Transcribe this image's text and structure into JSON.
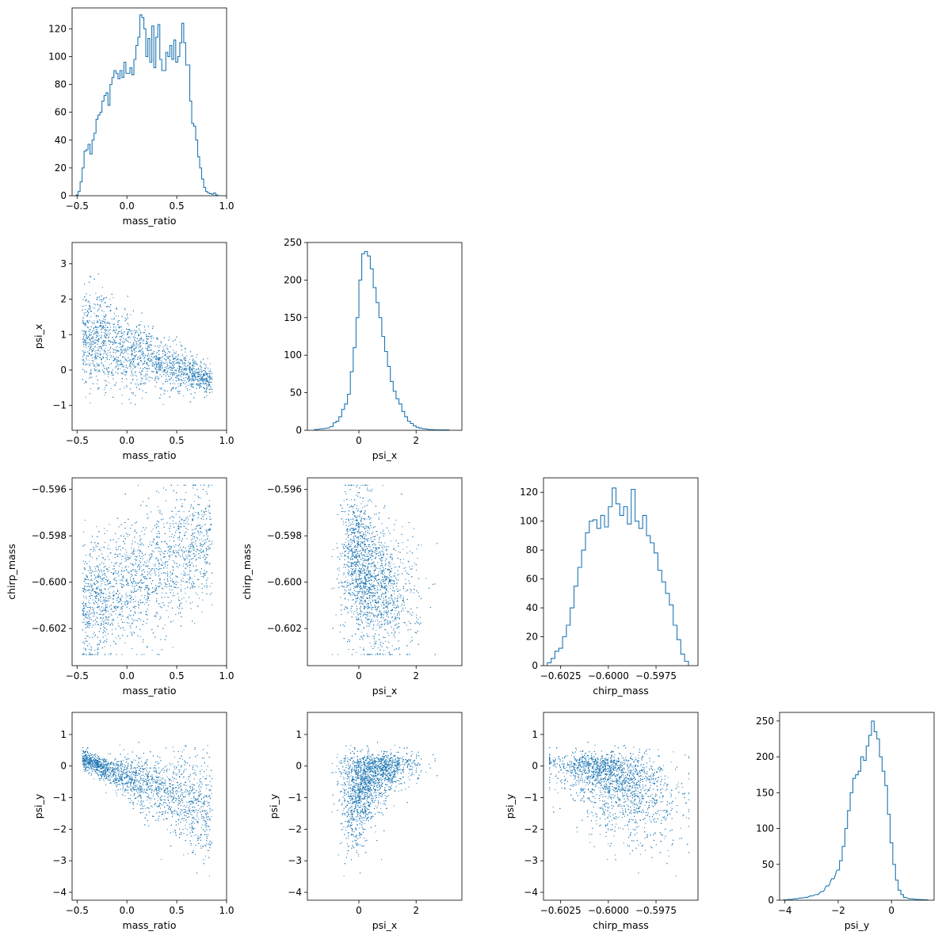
{
  "figure": {
    "variables": [
      "mass_ratio",
      "psi_x",
      "chirp_mass",
      "psi_y"
    ],
    "colors": {
      "line": "#1f77b4",
      "points": "#1f77b4",
      "axes": "#000000"
    }
  },
  "chart_data": [
    {
      "type": "histogram",
      "variable": "mass_ratio",
      "xlabel": "mass_ratio",
      "xlim": [
        -0.55,
        1.0
      ],
      "ylim": [
        0,
        135
      ],
      "xticks": [
        -0.5,
        0.0,
        0.5,
        1.0
      ],
      "xtick_labels": [
        "−0.5",
        "0.0",
        "0.5",
        "1.0"
      ],
      "yticks": [
        0,
        20,
        40,
        60,
        80,
        100,
        120
      ],
      "ytick_labels": [
        "0",
        "20",
        "40",
        "60",
        "80",
        "100",
        "120"
      ],
      "bins": [
        [
          -0.5,
          0.5
        ],
        [
          -0.48,
          3
        ],
        [
          -0.46,
          10
        ],
        [
          -0.44,
          20
        ],
        [
          -0.42,
          32
        ],
        [
          -0.4,
          33
        ],
        [
          -0.38,
          37
        ],
        [
          -0.36,
          30
        ],
        [
          -0.34,
          40
        ],
        [
          -0.32,
          45
        ],
        [
          -0.3,
          55
        ],
        [
          -0.28,
          58
        ],
        [
          -0.26,
          60
        ],
        [
          -0.24,
          68
        ],
        [
          -0.22,
          72
        ],
        [
          -0.2,
          74
        ],
        [
          -0.18,
          65
        ],
        [
          -0.16,
          80
        ],
        [
          -0.14,
          85
        ],
        [
          -0.12,
          90
        ],
        [
          -0.1,
          88
        ],
        [
          -0.08,
          84
        ],
        [
          -0.06,
          90
        ],
        [
          -0.04,
          85
        ],
        [
          -0.02,
          96
        ],
        [
          0.0,
          88
        ],
        [
          0.02,
          88
        ],
        [
          0.04,
          92
        ],
        [
          0.06,
          87
        ],
        [
          0.08,
          98
        ],
        [
          0.1,
          108
        ],
        [
          0.12,
          114
        ],
        [
          0.14,
          130
        ],
        [
          0.16,
          128
        ],
        [
          0.18,
          120
        ],
        [
          0.2,
          100
        ],
        [
          0.22,
          113
        ],
        [
          0.24,
          96
        ],
        [
          0.26,
          122
        ],
        [
          0.28,
          92
        ],
        [
          0.3,
          114
        ],
        [
          0.32,
          123
        ],
        [
          0.34,
          98
        ],
        [
          0.36,
          90
        ],
        [
          0.38,
          90
        ],
        [
          0.4,
          103
        ],
        [
          0.42,
          100
        ],
        [
          0.44,
          108
        ],
        [
          0.46,
          98
        ],
        [
          0.48,
          112
        ],
        [
          0.5,
          96
        ],
        [
          0.52,
          100
        ],
        [
          0.54,
          110
        ],
        [
          0.56,
          124
        ],
        [
          0.58,
          110
        ],
        [
          0.6,
          94
        ],
        [
          0.62,
          94
        ],
        [
          0.64,
          68
        ],
        [
          0.66,
          52
        ],
        [
          0.68,
          50
        ],
        [
          0.7,
          40
        ],
        [
          0.72,
          28
        ],
        [
          0.74,
          20
        ],
        [
          0.76,
          12
        ],
        [
          0.78,
          6
        ],
        [
          0.8,
          3
        ],
        [
          0.82,
          2
        ],
        [
          0.84,
          1.5
        ],
        [
          0.86,
          1
        ],
        [
          0.88,
          2
        ],
        [
          0.9,
          0.5
        ]
      ],
      "bin_width": 0.02
    },
    {
      "type": "histogram",
      "variable": "psi_x",
      "xlabel": "psi_x",
      "xlim": [
        -1.8,
        3.6
      ],
      "ylim": [
        0,
        250
      ],
      "xticks": [
        0,
        2
      ],
      "xtick_labels": [
        "0",
        "2"
      ],
      "yticks": [
        0,
        50,
        100,
        150,
        200,
        250
      ],
      "ytick_labels": [
        "0",
        "50",
        "100",
        "150",
        "200",
        "250"
      ],
      "bins": [
        [
          -1.5,
          1
        ],
        [
          -1.3,
          2
        ],
        [
          -1.1,
          3
        ],
        [
          -0.95,
          5
        ],
        [
          -0.85,
          10
        ],
        [
          -0.75,
          12
        ],
        [
          -0.65,
          18
        ],
        [
          -0.55,
          28
        ],
        [
          -0.45,
          35
        ],
        [
          -0.35,
          48
        ],
        [
          -0.25,
          78
        ],
        [
          -0.15,
          110
        ],
        [
          -0.05,
          150
        ],
        [
          0.05,
          200
        ],
        [
          0.15,
          235
        ],
        [
          0.25,
          238
        ],
        [
          0.35,
          232
        ],
        [
          0.45,
          215
        ],
        [
          0.55,
          190
        ],
        [
          0.65,
          170
        ],
        [
          0.75,
          150
        ],
        [
          0.85,
          125
        ],
        [
          0.95,
          105
        ],
        [
          1.05,
          85
        ],
        [
          1.15,
          65
        ],
        [
          1.25,
          52
        ],
        [
          1.35,
          42
        ],
        [
          1.45,
          35
        ],
        [
          1.55,
          25
        ],
        [
          1.65,
          18
        ],
        [
          1.75,
          12
        ],
        [
          1.85,
          9
        ],
        [
          1.95,
          6
        ],
        [
          2.05,
          4
        ],
        [
          2.15,
          3
        ],
        [
          2.3,
          2
        ],
        [
          2.5,
          1
        ],
        [
          2.8,
          0.5
        ],
        [
          3.1,
          0.5
        ]
      ],
      "bin_width": 0.1
    },
    {
      "type": "histogram",
      "variable": "chirp_mass",
      "xlabel": "chirp_mass",
      "xlim": [
        -0.6034,
        -0.5953
      ],
      "ylim": [
        0,
        130
      ],
      "xticks": [
        -0.6025,
        -0.6,
        -0.5975
      ],
      "xtick_labels": [
        "−0.6025",
        "−0.6000",
        "−0.5975"
      ],
      "yticks": [
        0,
        20,
        40,
        60,
        80,
        100,
        120
      ],
      "ytick_labels": [
        "0",
        "20",
        "40",
        "60",
        "80",
        "100",
        "120"
      ],
      "bins": [
        [
          -0.6031,
          2
        ],
        [
          -0.6029,
          5
        ],
        [
          -0.6027,
          10
        ],
        [
          -0.6025,
          12
        ],
        [
          -0.6023,
          20
        ],
        [
          -0.6021,
          28
        ],
        [
          -0.6019,
          40
        ],
        [
          -0.6017,
          55
        ],
        [
          -0.6015,
          68
        ],
        [
          -0.6013,
          80
        ],
        [
          -0.6011,
          92
        ],
        [
          -0.6009,
          100
        ],
        [
          -0.6007,
          101
        ],
        [
          -0.6005,
          95
        ],
        [
          -0.6003,
          104
        ],
        [
          -0.6001,
          96
        ],
        [
          -0.5999,
          110
        ],
        [
          -0.5997,
          123
        ],
        [
          -0.5995,
          112
        ],
        [
          -0.5993,
          104
        ],
        [
          -0.5991,
          110
        ],
        [
          -0.5989,
          98
        ],
        [
          -0.5987,
          122
        ],
        [
          -0.5985,
          100
        ],
        [
          -0.5983,
          95
        ],
        [
          -0.5981,
          104
        ],
        [
          -0.5979,
          90
        ],
        [
          -0.5977,
          85
        ],
        [
          -0.5975,
          78
        ],
        [
          -0.5973,
          66
        ],
        [
          -0.5971,
          58
        ],
        [
          -0.5969,
          50
        ],
        [
          -0.5967,
          42
        ],
        [
          -0.5965,
          28
        ],
        [
          -0.5963,
          18
        ],
        [
          -0.5961,
          8
        ],
        [
          -0.5959,
          3
        ]
      ],
      "bin_width": 0.0002
    },
    {
      "type": "histogram",
      "variable": "psi_y",
      "xlabel": "psi_y",
      "xlim": [
        -4.2,
        1.6
      ],
      "ylim": [
        0,
        262
      ],
      "xticks": [
        -4,
        -2,
        0
      ],
      "xtick_labels": [
        "−4",
        "−2",
        "0"
      ],
      "yticks": [
        0,
        50,
        100,
        150,
        200,
        250
      ],
      "ytick_labels": [
        "0",
        "50",
        "100",
        "150",
        "200",
        "250"
      ],
      "bins": [
        [
          -4.0,
          0.5
        ],
        [
          -3.8,
          1
        ],
        [
          -3.6,
          2
        ],
        [
          -3.4,
          3
        ],
        [
          -3.2,
          4
        ],
        [
          -3.0,
          6
        ],
        [
          -2.8,
          8
        ],
        [
          -2.6,
          12
        ],
        [
          -2.4,
          20
        ],
        [
          -2.2,
          30
        ],
        [
          -2.0,
          42
        ],
        [
          -1.9,
          55
        ],
        [
          -1.8,
          75
        ],
        [
          -1.7,
          100
        ],
        [
          -1.6,
          125
        ],
        [
          -1.5,
          150
        ],
        [
          -1.4,
          170
        ],
        [
          -1.3,
          175
        ],
        [
          -1.2,
          180
        ],
        [
          -1.1,
          200
        ],
        [
          -1.0,
          195
        ],
        [
          -0.9,
          215
        ],
        [
          -0.8,
          230
        ],
        [
          -0.7,
          250
        ],
        [
          -0.6,
          235
        ],
        [
          -0.5,
          225
        ],
        [
          -0.4,
          200
        ],
        [
          -0.3,
          180
        ],
        [
          -0.2,
          160
        ],
        [
          -0.1,
          120
        ],
        [
          0.0,
          80
        ],
        [
          0.1,
          50
        ],
        [
          0.2,
          28
        ],
        [
          0.3,
          14
        ],
        [
          0.4,
          8
        ],
        [
          0.5,
          4
        ],
        [
          0.7,
          2
        ],
        [
          1.0,
          1
        ],
        [
          1.3,
          0.5
        ]
      ],
      "bin_width": 0.1
    },
    {
      "type": "scatter",
      "x_variable": "mass_ratio",
      "y_variable": "psi_x",
      "xlabel": "mass_ratio",
      "ylabel": "psi_x",
      "xlim": [
        -0.55,
        1.0
      ],
      "ylim": [
        -1.7,
        3.6
      ],
      "xticks": [
        -0.5,
        0.0,
        0.5,
        1.0
      ],
      "xtick_labels": [
        "−0.5",
        "0.0",
        "0.5",
        "1.0"
      ],
      "yticks": [
        -1,
        0,
        1,
        2,
        3
      ],
      "ytick_labels": [
        "−1",
        "0",
        "1",
        "2",
        "3"
      ]
    },
    {
      "type": "scatter",
      "x_variable": "mass_ratio",
      "y_variable": "chirp_mass",
      "xlabel": "mass_ratio",
      "ylabel": "chirp_mass",
      "xlim": [
        -0.55,
        1.0
      ],
      "ylim": [
        -0.6036,
        -0.5955
      ],
      "xticks": [
        -0.5,
        0.0,
        0.5,
        1.0
      ],
      "xtick_labels": [
        "−0.5",
        "0.0",
        "0.5",
        "1.0"
      ],
      "yticks": [
        -0.602,
        -0.6,
        -0.598,
        -0.596
      ],
      "ytick_labels": [
        "−0.602",
        "−0.600",
        "−0.598",
        "−0.596"
      ]
    },
    {
      "type": "scatter",
      "x_variable": "psi_x",
      "y_variable": "chirp_mass",
      "xlabel": "psi_x",
      "ylabel": "chirp_mass",
      "xlim": [
        -1.8,
        3.6
      ],
      "ylim": [
        -0.6036,
        -0.5955
      ],
      "xticks": [
        0,
        2
      ],
      "xtick_labels": [
        "0",
        "2"
      ],
      "yticks": [
        -0.602,
        -0.6,
        -0.598,
        -0.596
      ],
      "ytick_labels": [
        "−0.602",
        "−0.600",
        "−0.598",
        "−0.596"
      ]
    },
    {
      "type": "scatter",
      "x_variable": "mass_ratio",
      "y_variable": "psi_y",
      "xlabel": "mass_ratio",
      "ylabel": "psi_y",
      "xlim": [
        -0.55,
        1.0
      ],
      "ylim": [
        -4.25,
        1.7
      ],
      "xticks": [
        -0.5,
        0.0,
        0.5,
        1.0
      ],
      "xtick_labels": [
        "−0.5",
        "0.0",
        "0.5",
        "1.0"
      ],
      "yticks": [
        -4,
        -3,
        -2,
        -1,
        0,
        1
      ],
      "ytick_labels": [
        "−4",
        "−3",
        "−2",
        "−1",
        "0",
        "1"
      ]
    },
    {
      "type": "scatter",
      "x_variable": "psi_x",
      "y_variable": "psi_y",
      "xlabel": "psi_x",
      "ylabel": "psi_y",
      "xlim": [
        -1.8,
        3.6
      ],
      "ylim": [
        -4.25,
        1.7
      ],
      "xticks": [
        0,
        2
      ],
      "xtick_labels": [
        "0",
        "2"
      ],
      "yticks": [
        -4,
        -3,
        -2,
        -1,
        0,
        1
      ],
      "ytick_labels": [
        "−4",
        "−3",
        "−2",
        "−1",
        "0",
        "1"
      ]
    },
    {
      "type": "scatter",
      "x_variable": "chirp_mass",
      "y_variable": "psi_y",
      "xlabel": "chirp_mass",
      "ylabel": "psi_y",
      "xlim": [
        -0.6034,
        -0.5953
      ],
      "ylim": [
        -4.25,
        1.7
      ],
      "xticks": [
        -0.6025,
        -0.6,
        -0.5975
      ],
      "xtick_labels": [
        "−0.6025",
        "−0.6000",
        "−0.5975"
      ],
      "yticks": [
        -4,
        -3,
        -2,
        -1,
        0,
        1
      ],
      "ytick_labels": [
        "−4",
        "−3",
        "−2",
        "−1",
        "0",
        "1"
      ]
    }
  ]
}
